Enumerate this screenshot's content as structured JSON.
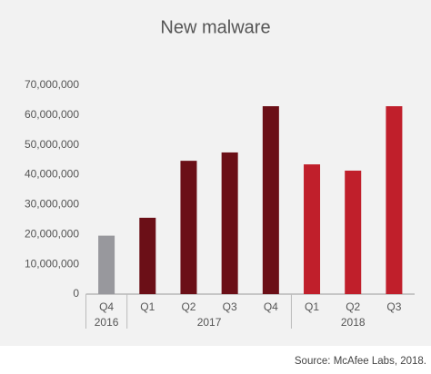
{
  "chart_data": {
    "type": "bar",
    "title": "New malware",
    "source": "Source: McAfee Labs, 2018.",
    "groups": [
      {
        "name": "2016",
        "color": "#98989d",
        "categories": [
          "Q4"
        ],
        "values": [
          19600000
        ]
      },
      {
        "name": "2017",
        "color": "#6b0f17",
        "categories": [
          "Q1",
          "Q2",
          "Q3",
          "Q4"
        ],
        "values": [
          25600000,
          44700000,
          47500000,
          63000000
        ]
      },
      {
        "name": "2018",
        "color": "#c01f2b",
        "categories": [
          "Q1",
          "Q2",
          "Q3"
        ],
        "values": [
          43500000,
          41400000,
          63000000
        ]
      }
    ],
    "ylim": [
      0,
      70000000
    ],
    "yticks": [
      0,
      {
        "value": 10000000,
        "label": "10,000,000"
      },
      {
        "value": 20000000,
        "label": "20,000,000"
      },
      {
        "value": 30000000,
        "label": "30,000,000"
      },
      {
        "value": 40000000,
        "label": "40,000,000"
      },
      {
        "value": 50000000,
        "label": "50,000,000"
      },
      {
        "value": 60000000,
        "label": "60,000,000"
      },
      {
        "value": 70000000,
        "label": "70,000,000"
      }
    ],
    "grid": false
  }
}
